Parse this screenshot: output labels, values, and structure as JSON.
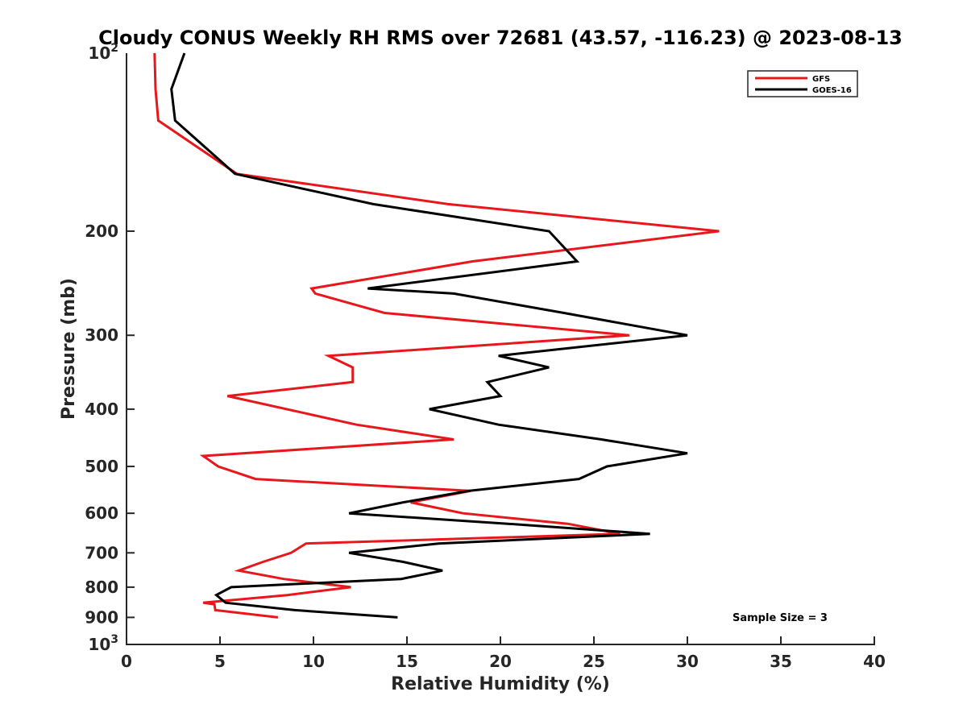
{
  "chart_data": {
    "type": "line",
    "title": "Cloudy CONUS Weekly RH RMS over 72681 (43.57, -116.23) @ 2023-08-13",
    "xlabel": "Relative Humidity (%)",
    "ylabel": "Pressure (mb)",
    "xlim": [
      0,
      40
    ],
    "ylim": [
      100,
      1000
    ],
    "y_scale": "log",
    "y_reversed": true,
    "x_ticks": [
      0,
      5,
      10,
      15,
      20,
      25,
      30,
      35,
      40
    ],
    "x_tick_labels": [
      "0",
      "5",
      "10",
      "15",
      "20",
      "25",
      "30",
      "35",
      "40"
    ],
    "y_ticks": [
      200,
      300,
      400,
      500,
      600,
      700,
      800,
      900
    ],
    "y_tick_labels": [
      "200",
      "300",
      "400",
      "500",
      "600",
      "700",
      "800",
      "900"
    ],
    "y_end_labels": {
      "top": {
        "base": "10",
        "exp": "2"
      },
      "bottom": {
        "base": "10",
        "exp": "3"
      }
    },
    "grid": false,
    "legend_position": "top-right",
    "annotation": "Sample Size = 3",
    "series": [
      {
        "name": "GFS",
        "color": "#e8171b",
        "points": [
          [
            1.5,
            100
          ],
          [
            1.55,
            115
          ],
          [
            1.7,
            130
          ],
          [
            5.9,
            160
          ],
          [
            17.2,
            180
          ],
          [
            31.7,
            200
          ],
          [
            18.5,
            225
          ],
          [
            9.9,
            250
          ],
          [
            10.1,
            255
          ],
          [
            13.8,
            275
          ],
          [
            26.9,
            300
          ],
          [
            10.8,
            325
          ],
          [
            12.1,
            340
          ],
          [
            12.1,
            360
          ],
          [
            5.4,
            380
          ],
          [
            12.3,
            425
          ],
          [
            17.5,
            450
          ],
          [
            4.1,
            480
          ],
          [
            4.9,
            500
          ],
          [
            6.9,
            525
          ],
          [
            18.4,
            550
          ],
          [
            15.2,
            575
          ],
          [
            18.0,
            600
          ],
          [
            23.6,
            625
          ],
          [
            26.4,
            650
          ],
          [
            9.6,
            675
          ],
          [
            8.8,
            700
          ],
          [
            7.3,
            725
          ],
          [
            6.0,
            750
          ],
          [
            8.4,
            775
          ],
          [
            12.0,
            800
          ],
          [
            8.6,
            825
          ],
          [
            4.1,
            850
          ],
          [
            4.7,
            855
          ],
          [
            4.75,
            875
          ],
          [
            8.1,
            900
          ]
        ]
      },
      {
        "name": "GOES-16",
        "color": "#000000",
        "points": [
          [
            3.1,
            100
          ],
          [
            2.4,
            115
          ],
          [
            2.6,
            130
          ],
          [
            5.8,
            160
          ],
          [
            13.2,
            180
          ],
          [
            22.6,
            200
          ],
          [
            24.1,
            225
          ],
          [
            12.9,
            250
          ],
          [
            17.5,
            255
          ],
          [
            23.4,
            275
          ],
          [
            30.0,
            300
          ],
          [
            19.9,
            325
          ],
          [
            22.6,
            340
          ],
          [
            19.3,
            360
          ],
          [
            20.0,
            380
          ],
          [
            16.2,
            400
          ],
          [
            19.9,
            425
          ],
          [
            25.4,
            450
          ],
          [
            30.0,
            475
          ],
          [
            25.7,
            500
          ],
          [
            24.2,
            525
          ],
          [
            18.3,
            550
          ],
          [
            14.8,
            575
          ],
          [
            11.9,
            600
          ],
          [
            20.4,
            625
          ],
          [
            28.0,
            650
          ],
          [
            16.7,
            675
          ],
          [
            11.9,
            700
          ],
          [
            14.8,
            725
          ],
          [
            16.9,
            750
          ],
          [
            14.7,
            775
          ],
          [
            5.6,
            800
          ],
          [
            4.8,
            825
          ],
          [
            5.3,
            850
          ],
          [
            9.0,
            875
          ],
          [
            14.5,
            900
          ]
        ]
      }
    ]
  }
}
